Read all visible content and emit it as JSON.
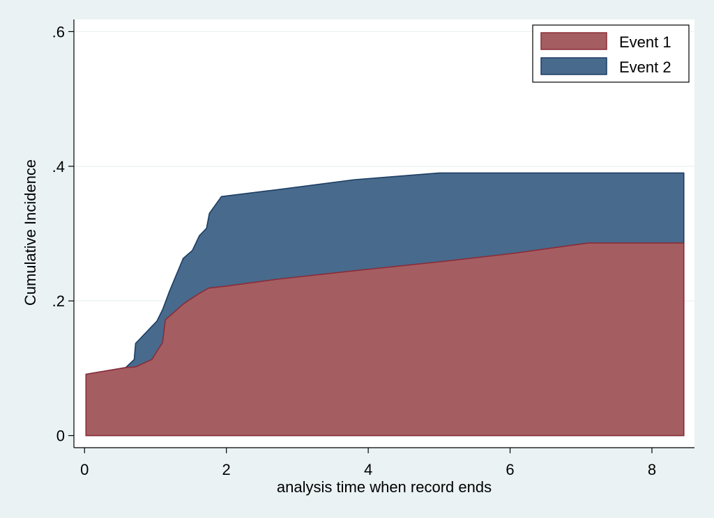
{
  "chart_data": {
    "type": "area",
    "stacked": true,
    "xlabel": "analysis time when record ends",
    "ylabel": "Cumulative Incidence",
    "xlim": [
      -0.15,
      8.6
    ],
    "ylim": [
      -0.018,
      0.618
    ],
    "x_ticks": [
      {
        "value": 0,
        "label": "0"
      },
      {
        "value": 2,
        "label": "2"
      },
      {
        "value": 4,
        "label": "4"
      },
      {
        "value": 6,
        "label": "6"
      },
      {
        "value": 8,
        "label": "8"
      }
    ],
    "y_ticks": [
      {
        "value": 0,
        "label": "0"
      },
      {
        "value": 0.2,
        "label": ".2"
      },
      {
        "value": 0.4,
        "label": ".4"
      },
      {
        "value": 0.6,
        "label": ".6"
      }
    ],
    "grid": "horizontal",
    "legend_position": "top-right",
    "colors": {
      "background": "#eaf2f3",
      "plot_background": "#ffffff",
      "gridline": "#eaf2f3",
      "axis": "#000000",
      "event1_fill": "#a45e62",
      "event1_line": "#8c2b36",
      "event2_fill": "#486a8c",
      "event2_line": "#1b3d63"
    },
    "series": [
      {
        "name": "Event 1",
        "x": [
          0.02,
          0.58,
          0.72,
          0.95,
          1.02,
          1.1,
          1.14,
          1.4,
          1.6,
          1.75,
          2.0,
          2.7,
          4.0,
          5.0,
          6.0,
          7.1,
          8.45
        ],
        "y": [
          0.091,
          0.101,
          0.102,
          0.113,
          0.125,
          0.138,
          0.172,
          0.196,
          0.21,
          0.219,
          0.222,
          0.232,
          0.247,
          0.258,
          0.27,
          0.286,
          0.286
        ]
      },
      {
        "name": "Event 2",
        "x": [
          0.02,
          0.58,
          0.62,
          0.7,
          0.72,
          1.02,
          1.1,
          1.2,
          1.39,
          1.52,
          1.62,
          1.72,
          1.76,
          1.93,
          2.7,
          3.8,
          5.0,
          6.0,
          7.1,
          8.45
        ],
        "y": [
          0.091,
          0.101,
          0.105,
          0.113,
          0.137,
          0.17,
          0.187,
          0.215,
          0.263,
          0.275,
          0.297,
          0.308,
          0.33,
          0.355,
          0.365,
          0.38,
          0.39,
          0.39,
          0.39,
          0.39
        ]
      }
    ]
  }
}
